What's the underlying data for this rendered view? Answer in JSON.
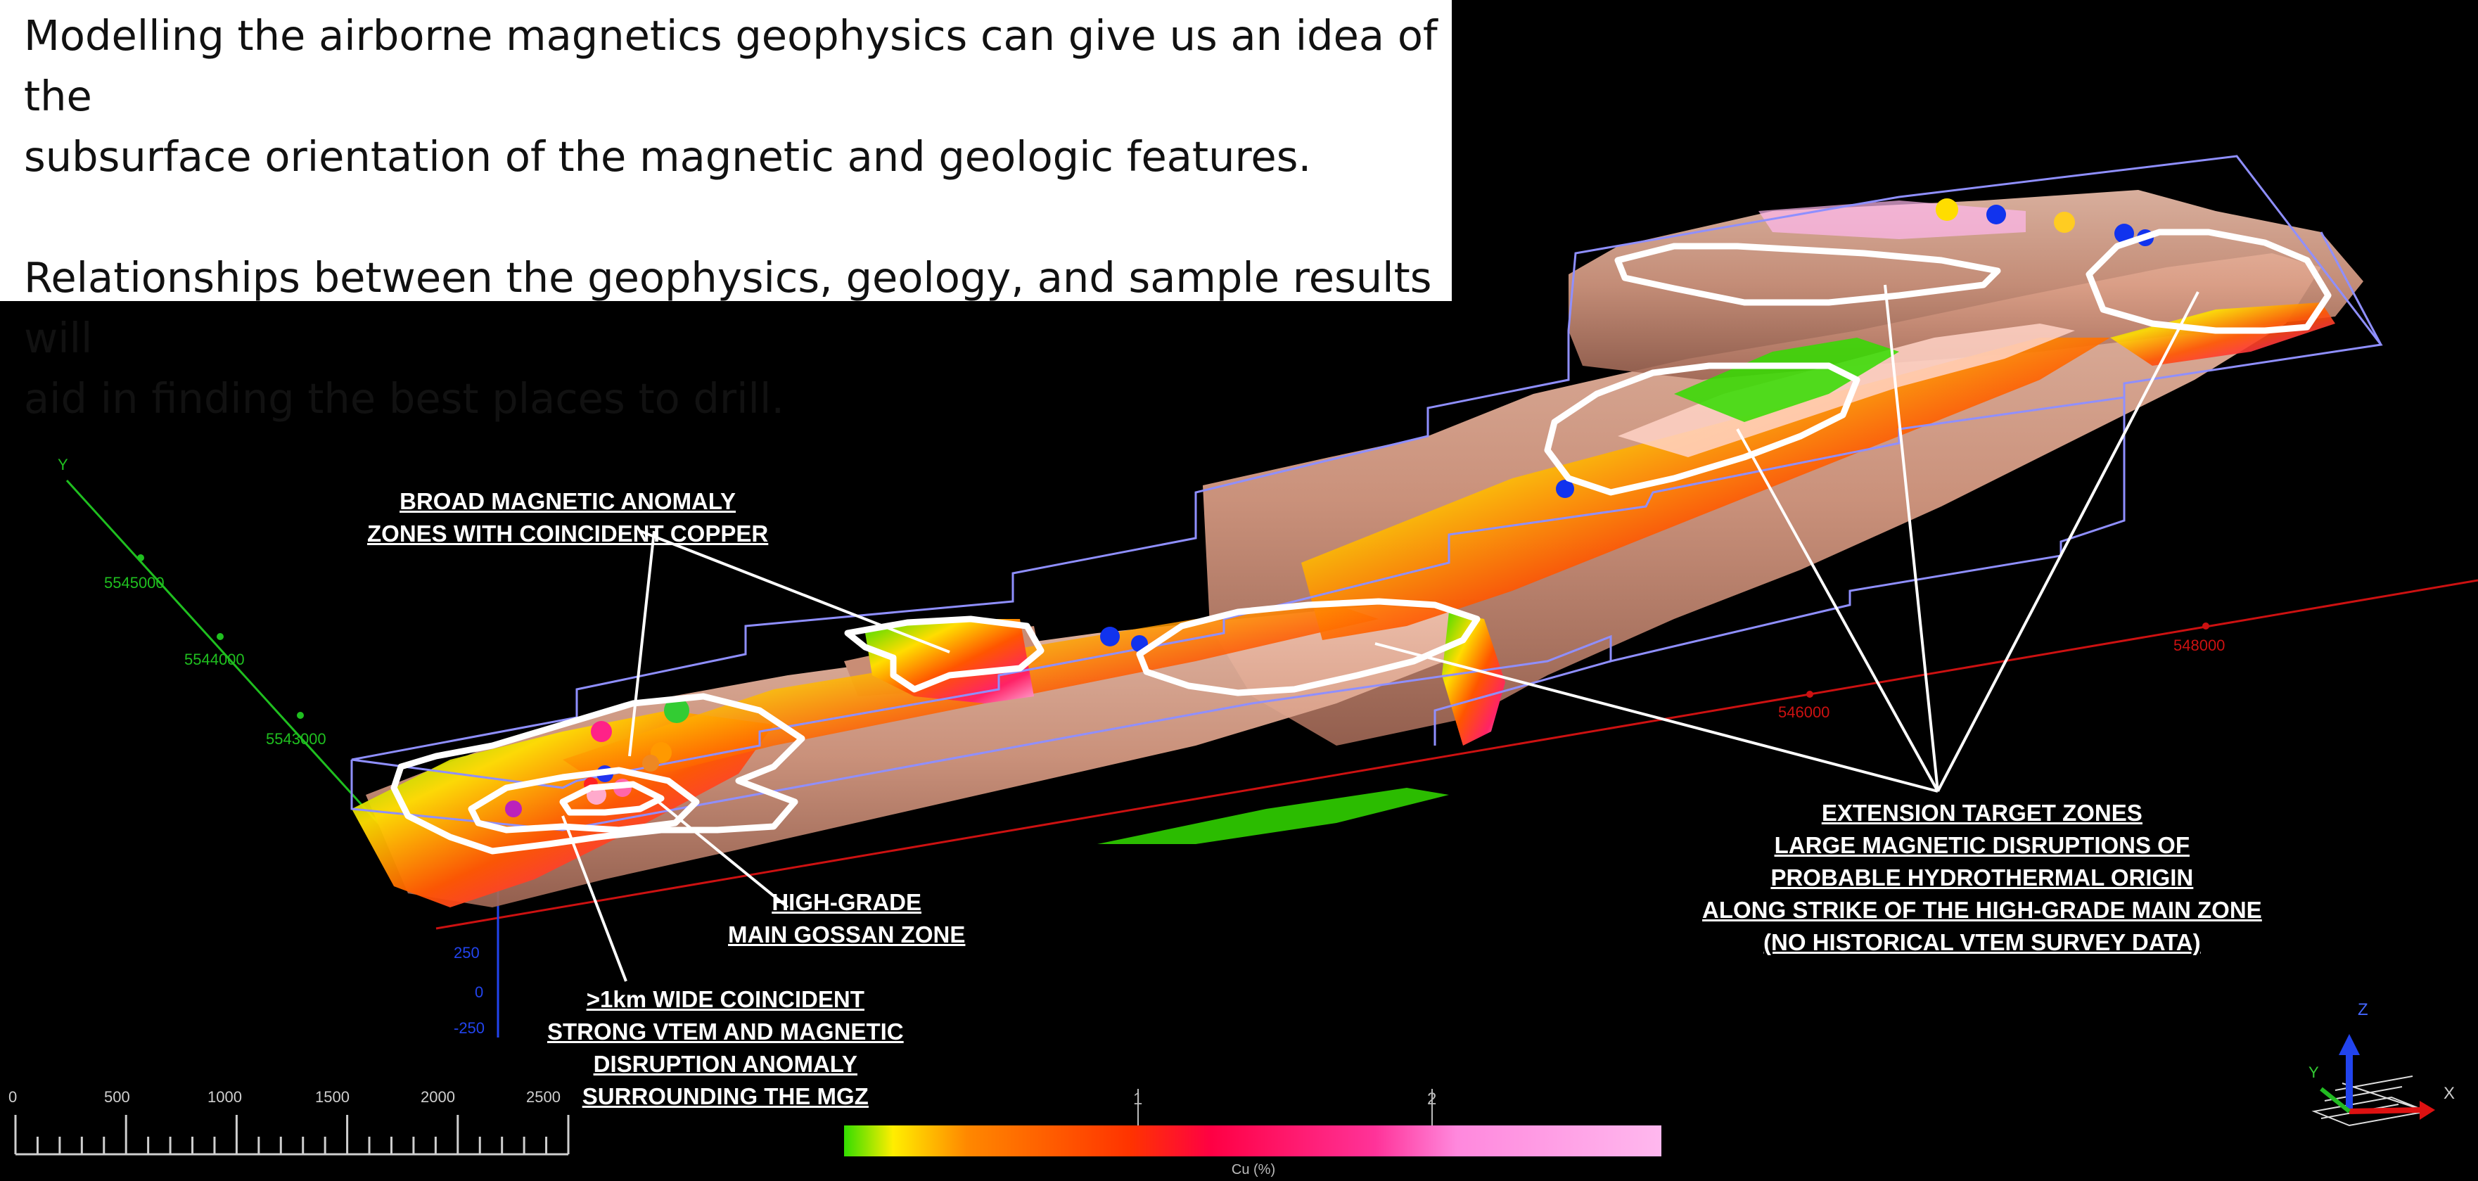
{
  "intro": {
    "line1": "Modelling the airborne magnetics geophysics can give us an idea of the",
    "line2": "subsurface orientation of the magnetic and geologic features.",
    "line3": "Relationships between the geophysics, geology, and sample results will",
    "line4": "aid in finding the best places to drill."
  },
  "callouts": {
    "broad": [
      "BROAD MAGNETIC ANOMALY",
      "ZONES WITH COINCIDENT COPPER"
    ],
    "highgrade": [
      "HIGH-GRADE",
      "MAIN GOSSAN ZONE"
    ],
    "vtem": [
      ">1km WIDE COINCIDENT",
      "STRONG VTEM AND MAGNETIC",
      "DISRUPTION ANOMALY",
      "SURROUNDING THE MGZ"
    ],
    "extension": [
      "EXTENSION TARGET ZONES",
      "LARGE MAGNETIC DISRUPTIONS OF",
      "PROBABLE HYDROTHERMAL ORIGIN",
      "ALONG STRIKE OF THE HIGH-GRADE MAIN ZONE",
      "(NO HISTORICAL VTEM SURVEY DATA)"
    ]
  },
  "axes": {
    "y_axis_name": "Y",
    "y_ticks": [
      "5545000",
      "5544000",
      "5543000"
    ],
    "x_ticks": [
      "546000",
      "548000"
    ],
    "z_ticks": [
      "250",
      "0",
      "-250"
    ]
  },
  "scale_bar": {
    "labels": [
      "0",
      "500",
      "1000",
      "1500",
      "2000",
      "2500"
    ]
  },
  "color_bar": {
    "title": "Cu (%)",
    "tick_labels": [
      "1",
      "2"
    ],
    "stops": [
      "#33dd00",
      "#ffee00",
      "#ff8800",
      "#ff3300",
      "#ff0044",
      "#ff3399",
      "#ff88dd",
      "#ffb8ee"
    ]
  },
  "gizmo": {
    "labels": [
      "Z",
      "Y",
      "X"
    ]
  },
  "colors": {
    "body": "#e2a58e",
    "outline": "#8f8fff",
    "y_axis": "#1fbf1f",
    "x_axis": "#cc1111",
    "z_axis": "#2244ee"
  }
}
